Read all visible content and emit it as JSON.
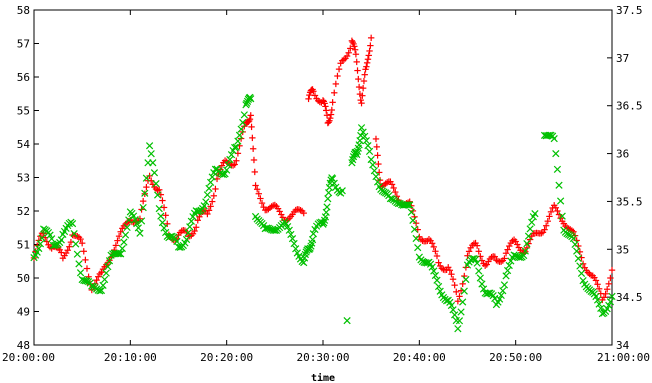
{
  "chart_data": {
    "type": "scatter",
    "title": "",
    "xlabel": "time",
    "ylabel_left": "",
    "ylabel_right": "",
    "grid": false,
    "legend": "none",
    "x_range": [
      "20:00:00",
      "21:00:00"
    ],
    "x_ticks": [
      "20:00:00",
      "20:10:00",
      "20:20:00",
      "20:30:00",
      "20:40:00",
      "20:50:00",
      "21:00:00"
    ],
    "y_left": {
      "range": [
        48,
        58
      ],
      "ticks": [
        "48",
        "49",
        "50",
        "51",
        "52",
        "53",
        "54",
        "55",
        "56",
        "57",
        "58"
      ]
    },
    "y_right": {
      "range": [
        34,
        37.5
      ],
      "ticks": [
        "34",
        "34.5",
        "35",
        "35.5",
        "36",
        "36.5",
        "37",
        "37.5"
      ]
    },
    "series": [
      {
        "axis": "left",
        "marker": "+",
        "color": "#ff0000",
        "points": [
          [
            "20:00:00",
            50.6
          ],
          [
            "20:01:00",
            51.3
          ],
          [
            "20:02:00",
            51.0
          ],
          [
            "20:03:00",
            50.5
          ],
          [
            "20:04:00",
            51.4
          ],
          [
            "20:05:00",
            50.9
          ],
          [
            "20:06:00",
            49.8
          ],
          [
            "20:07:00",
            50.0
          ],
          [
            "20:08:00",
            50.8
          ],
          [
            "20:09:00",
            51.2
          ],
          [
            "20:10:00",
            51.9
          ],
          [
            "20:11:00",
            51.6
          ],
          [
            "20:12:00",
            53.2
          ],
          [
            "20:13:00",
            52.5
          ],
          [
            "20:14:00",
            51.4
          ],
          [
            "20:15:00",
            51.2
          ],
          [
            "20:16:00",
            51.3
          ],
          [
            "20:17:00",
            51.7
          ],
          [
            "20:18:00",
            51.9
          ],
          [
            "20:19:00",
            53.0
          ],
          [
            "20:20:00",
            53.4
          ],
          [
            "20:21:00",
            53.6
          ],
          [
            "20:22:00",
            54.5
          ],
          [
            "20:22:30",
            55.0
          ],
          [
            "20:23:00",
            52.6
          ],
          [
            "20:24:00",
            52.2
          ],
          [
            "20:25:00",
            52.0
          ],
          [
            "20:26:00",
            51.9
          ],
          [
            "20:27:00",
            51.8
          ],
          [
            "20:28:00",
            52.1
          ],
          [
            "20:28:30",
            55.2
          ],
          [
            "20:29:00",
            55.7
          ],
          [
            "20:30:00",
            55.2
          ],
          [
            "20:30:30",
            54.7
          ],
          [
            "20:31:00",
            55.2
          ],
          [
            "20:32:00",
            56.5
          ],
          [
            "20:33:00",
            57.1
          ],
          [
            "20:33:30",
            56.4
          ],
          [
            "20:34:00",
            55.3
          ],
          [
            "20:34:30",
            56.2
          ],
          [
            "20:35:00",
            57.3
          ],
          [
            "20:35:30",
            54.0
          ],
          [
            "20:36:00",
            52.9
          ],
          [
            "20:37:00",
            52.7
          ],
          [
            "20:38:00",
            52.4
          ],
          [
            "20:39:00",
            52.1
          ],
          [
            "20:40:00",
            51.4
          ],
          [
            "20:41:00",
            51.0
          ],
          [
            "20:42:00",
            50.6
          ],
          [
            "20:43:00",
            50.2
          ],
          [
            "20:44:00",
            49.4
          ],
          [
            "20:45:00",
            50.6
          ],
          [
            "20:46:00",
            51.0
          ],
          [
            "20:47:00",
            50.4
          ],
          [
            "20:48:00",
            50.5
          ],
          [
            "20:49:00",
            50.8
          ],
          [
            "20:50:00",
            51.0
          ],
          [
            "20:51:00",
            50.9
          ],
          [
            "20:52:00",
            51.2
          ],
          [
            "20:53:00",
            51.6
          ],
          [
            "20:54:00",
            52.0
          ],
          [
            "20:55:00",
            51.8
          ],
          [
            "20:56:00",
            51.2
          ],
          [
            "20:57:00",
            50.6
          ],
          [
            "20:58:00",
            49.9
          ],
          [
            "20:59:00",
            49.5
          ],
          [
            "21:00:00",
            50.1
          ]
        ]
      },
      {
        "axis": "left",
        "marker": "x",
        "color": "#00c000",
        "points": [
          [
            "20:00:00",
            50.6
          ],
          [
            "20:01:00",
            51.5
          ],
          [
            "20:02:00",
            50.9
          ],
          [
            "20:03:00",
            51.4
          ],
          [
            "20:04:00",
            51.5
          ],
          [
            "20:05:00",
            50.1
          ],
          [
            "20:06:00",
            49.6
          ],
          [
            "20:07:00",
            49.8
          ],
          [
            "20:08:00",
            50.5
          ],
          [
            "20:09:00",
            50.9
          ],
          [
            "20:10:00",
            51.8
          ],
          [
            "20:11:00",
            51.5
          ],
          [
            "20:12:00",
            53.8
          ],
          [
            "20:13:00",
            52.2
          ],
          [
            "20:14:00",
            51.1
          ],
          [
            "20:15:00",
            51.0
          ],
          [
            "20:16:00",
            51.3
          ],
          [
            "20:17:00",
            52.0
          ],
          [
            "20:18:00",
            52.5
          ],
          [
            "20:19:00",
            53.2
          ],
          [
            "20:20:00",
            53.3
          ],
          [
            "20:21:00",
            53.8
          ],
          [
            "20:22:00",
            55.3
          ],
          [
            "20:22:30",
            55.2
          ],
          [
            "20:23:00",
            52.0
          ],
          [
            "20:24:00",
            51.3
          ],
          [
            "20:25:00",
            51.6
          ],
          [
            "20:26:00",
            51.5
          ],
          [
            "20:27:00",
            51.2
          ],
          [
            "20:28:00",
            50.3
          ],
          [
            "20:28:30",
            51.0
          ],
          [
            "20:29:00",
            51.2
          ],
          [
            "20:30:00",
            51.7
          ],
          [
            "20:30:30",
            52.3
          ],
          [
            "20:31:00",
            53.0
          ],
          [
            "20:32:00",
            52.6
          ],
          [
            "20:32:30",
            48.7
          ],
          [
            "20:33:00",
            53.5
          ],
          [
            "20:33:30",
            53.6
          ],
          [
            "20:34:00",
            54.6
          ],
          [
            "20:35:00",
            53.4
          ],
          [
            "20:36:00",
            52.8
          ],
          [
            "20:37:00",
            52.2
          ],
          [
            "20:38:00",
            52.4
          ],
          [
            "20:39:00",
            52.0
          ],
          [
            "20:40:00",
            50.8
          ],
          [
            "20:41:00",
            50.3
          ],
          [
            "20:42:00",
            49.9
          ],
          [
            "20:43:00",
            49.2
          ],
          [
            "20:44:00",
            48.6
          ],
          [
            "20:45:00",
            50.3
          ],
          [
            "20:46:00",
            50.5
          ],
          [
            "20:47:00",
            49.5
          ],
          [
            "20:48:00",
            49.2
          ],
          [
            "20:49:00",
            50.1
          ],
          [
            "20:50:00",
            50.6
          ],
          [
            "20:51:00",
            50.9
          ],
          [
            "20:52:00",
            51.8
          ],
          [
            "20:53:00",
            54.4
          ],
          [
            "20:54:00",
            54.0
          ],
          [
            "20:55:00",
            51.6
          ],
          [
            "20:56:00",
            51.0
          ],
          [
            "20:57:00",
            50.1
          ],
          [
            "20:58:00",
            49.4
          ],
          [
            "20:59:00",
            49.1
          ],
          [
            "21:00:00",
            49.3
          ]
        ]
      }
    ]
  }
}
